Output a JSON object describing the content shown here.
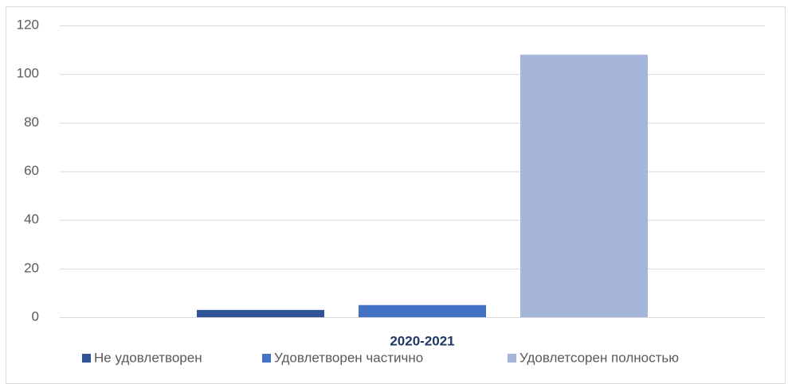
{
  "chart_data": {
    "type": "bar",
    "categories": [
      "2020-2021"
    ],
    "series": [
      {
        "name": "Не удовлетворен",
        "color": "#2f5597",
        "values": [
          3
        ]
      },
      {
        "name": "Удовлетворен частично",
        "color": "#4472c4",
        "values": [
          5
        ]
      },
      {
        "name": "Удовлетсорен полностью",
        "color": "#a6b5da",
        "values": [
          108
        ]
      }
    ],
    "ylim": [
      0,
      120
    ],
    "yticks": [
      0,
      20,
      40,
      60,
      80,
      100,
      120
    ],
    "grid": true,
    "legend": "bottom"
  }
}
